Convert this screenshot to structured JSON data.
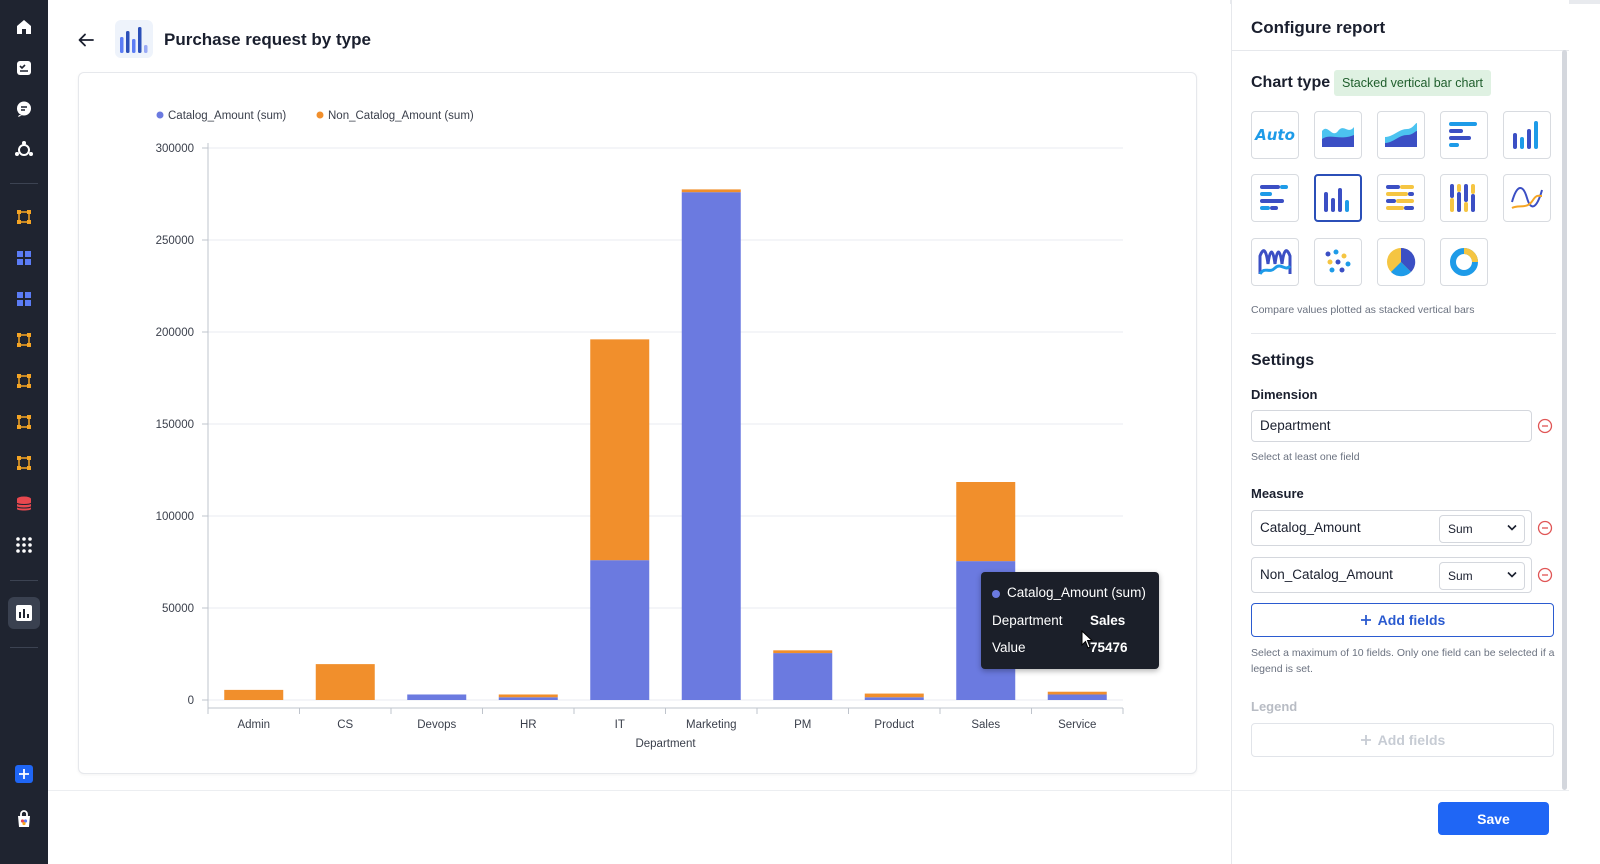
{
  "header": {
    "title": "Purchase request by type"
  },
  "chart_data": {
    "type": "bar",
    "stacked": true,
    "categories": [
      "Admin",
      "CS",
      "Devops",
      "HR",
      "IT",
      "Marketing",
      "PM",
      "Product",
      "Sales",
      "Service"
    ],
    "series": [
      {
        "name": "Catalog_Amount (sum)",
        "color": "#6b7ae0",
        "values": [
          0,
          0,
          3000,
          1500,
          76000,
          276000,
          25500,
          1500,
          75476,
          3000
        ]
      },
      {
        "name": "Non_Catalog_Amount (sum)",
        "color": "#f18f2c",
        "values": [
          5500,
          19500,
          0,
          1500,
          120000,
          1500,
          1500,
          2000,
          43000,
          1500
        ]
      }
    ],
    "xlabel": "Department",
    "ylabel": "",
    "ylim": [
      0,
      300000
    ],
    "yticks": [
      "0",
      "50000",
      "100000",
      "150000",
      "200000",
      "250000",
      "300000"
    ],
    "legend_position": "top-left",
    "grid": true
  },
  "tooltip": {
    "series": "Catalog_Amount (sum)",
    "dimension_label": "Department",
    "dimension_value": "Sales",
    "value_label": "Value",
    "value": "75476"
  },
  "panel": {
    "title": "Configure report",
    "chart_type_label": "Chart type",
    "chart_type_badge": "Stacked vertical bar chart",
    "chart_type_description": "Compare values plotted as stacked vertical bars",
    "settings_title": "Settings",
    "dimension_label": "Dimension",
    "dimension_value": "Department",
    "dimension_hint": "Select at least one field",
    "measure_label": "Measure",
    "measures": [
      {
        "field": "Catalog_Amount",
        "aggregation": "Sum"
      },
      {
        "field": "Non_Catalog_Amount",
        "aggregation": "Sum"
      }
    ],
    "add_fields_label": "Add fields",
    "measure_hint": "Select a maximum of 10 fields. Only one field can be selected if a legend is set.",
    "legend_label": "Legend",
    "legend_add_label": "Add fields",
    "save_label": "Save",
    "auto_label": "Auto"
  },
  "colors": {
    "accent": "#1f66f5",
    "catalog": "#6b7ae0",
    "non_catalog": "#f18f2c",
    "sidebar": "#1f2430"
  }
}
